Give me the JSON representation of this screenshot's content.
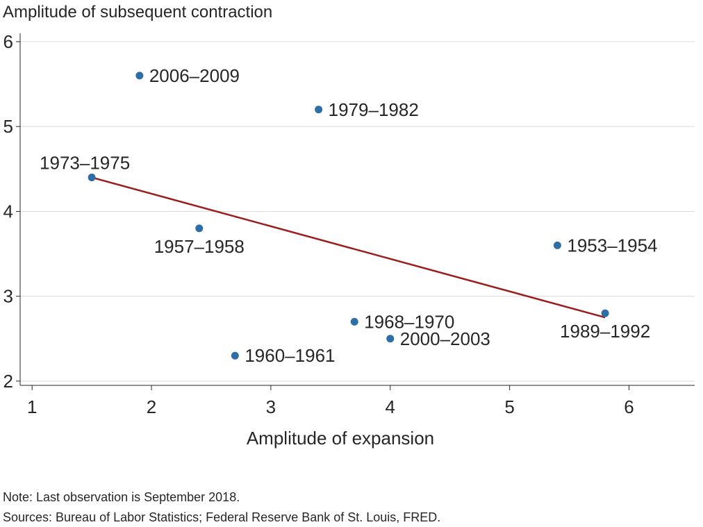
{
  "chart_data": {
    "type": "scatter",
    "title": "",
    "ylabel": "Amplitude of subsequent contraction",
    "xlabel": "Amplitude of expansion",
    "xlim": [
      0.9,
      6.55
    ],
    "ylim": [
      1.95,
      6.0
    ],
    "xticks": [
      1,
      2,
      3,
      4,
      5,
      6
    ],
    "yticks": [
      2,
      3,
      4,
      5,
      6
    ],
    "grid": "horizontal",
    "point_color": "#2e6ea6",
    "line_color": "#9c1c1c",
    "points": [
      {
        "label": "2006–2009",
        "x": 1.9,
        "y": 5.6,
        "label_pos": "right"
      },
      {
        "label": "1979–1982",
        "x": 3.4,
        "y": 5.2,
        "label_pos": "right"
      },
      {
        "label": "1973–1975",
        "x": 1.5,
        "y": 4.4,
        "label_pos": "above"
      },
      {
        "label": "1957–1958",
        "x": 2.4,
        "y": 3.8,
        "label_pos": "below"
      },
      {
        "label": "1953–1954",
        "x": 5.4,
        "y": 3.6,
        "label_pos": "right"
      },
      {
        "label": "1989–1992",
        "x": 5.8,
        "y": 2.8,
        "label_pos": "below"
      },
      {
        "label": "1968–1970",
        "x": 3.7,
        "y": 2.7,
        "label_pos": "right"
      },
      {
        "label": "2000–2003",
        "x": 4.0,
        "y": 2.5,
        "label_pos": "right"
      },
      {
        "label": "1960–1961",
        "x": 2.7,
        "y": 2.3,
        "label_pos": "right"
      }
    ],
    "trend_line": {
      "x": [
        1.5,
        5.8
      ],
      "y": [
        4.4,
        2.75
      ]
    }
  },
  "notes": {
    "note": "Note: Last observation is September 2018.",
    "sources": "Sources: Bureau of Labor Statistics; Federal Reserve Bank of St. Louis, FRED."
  }
}
